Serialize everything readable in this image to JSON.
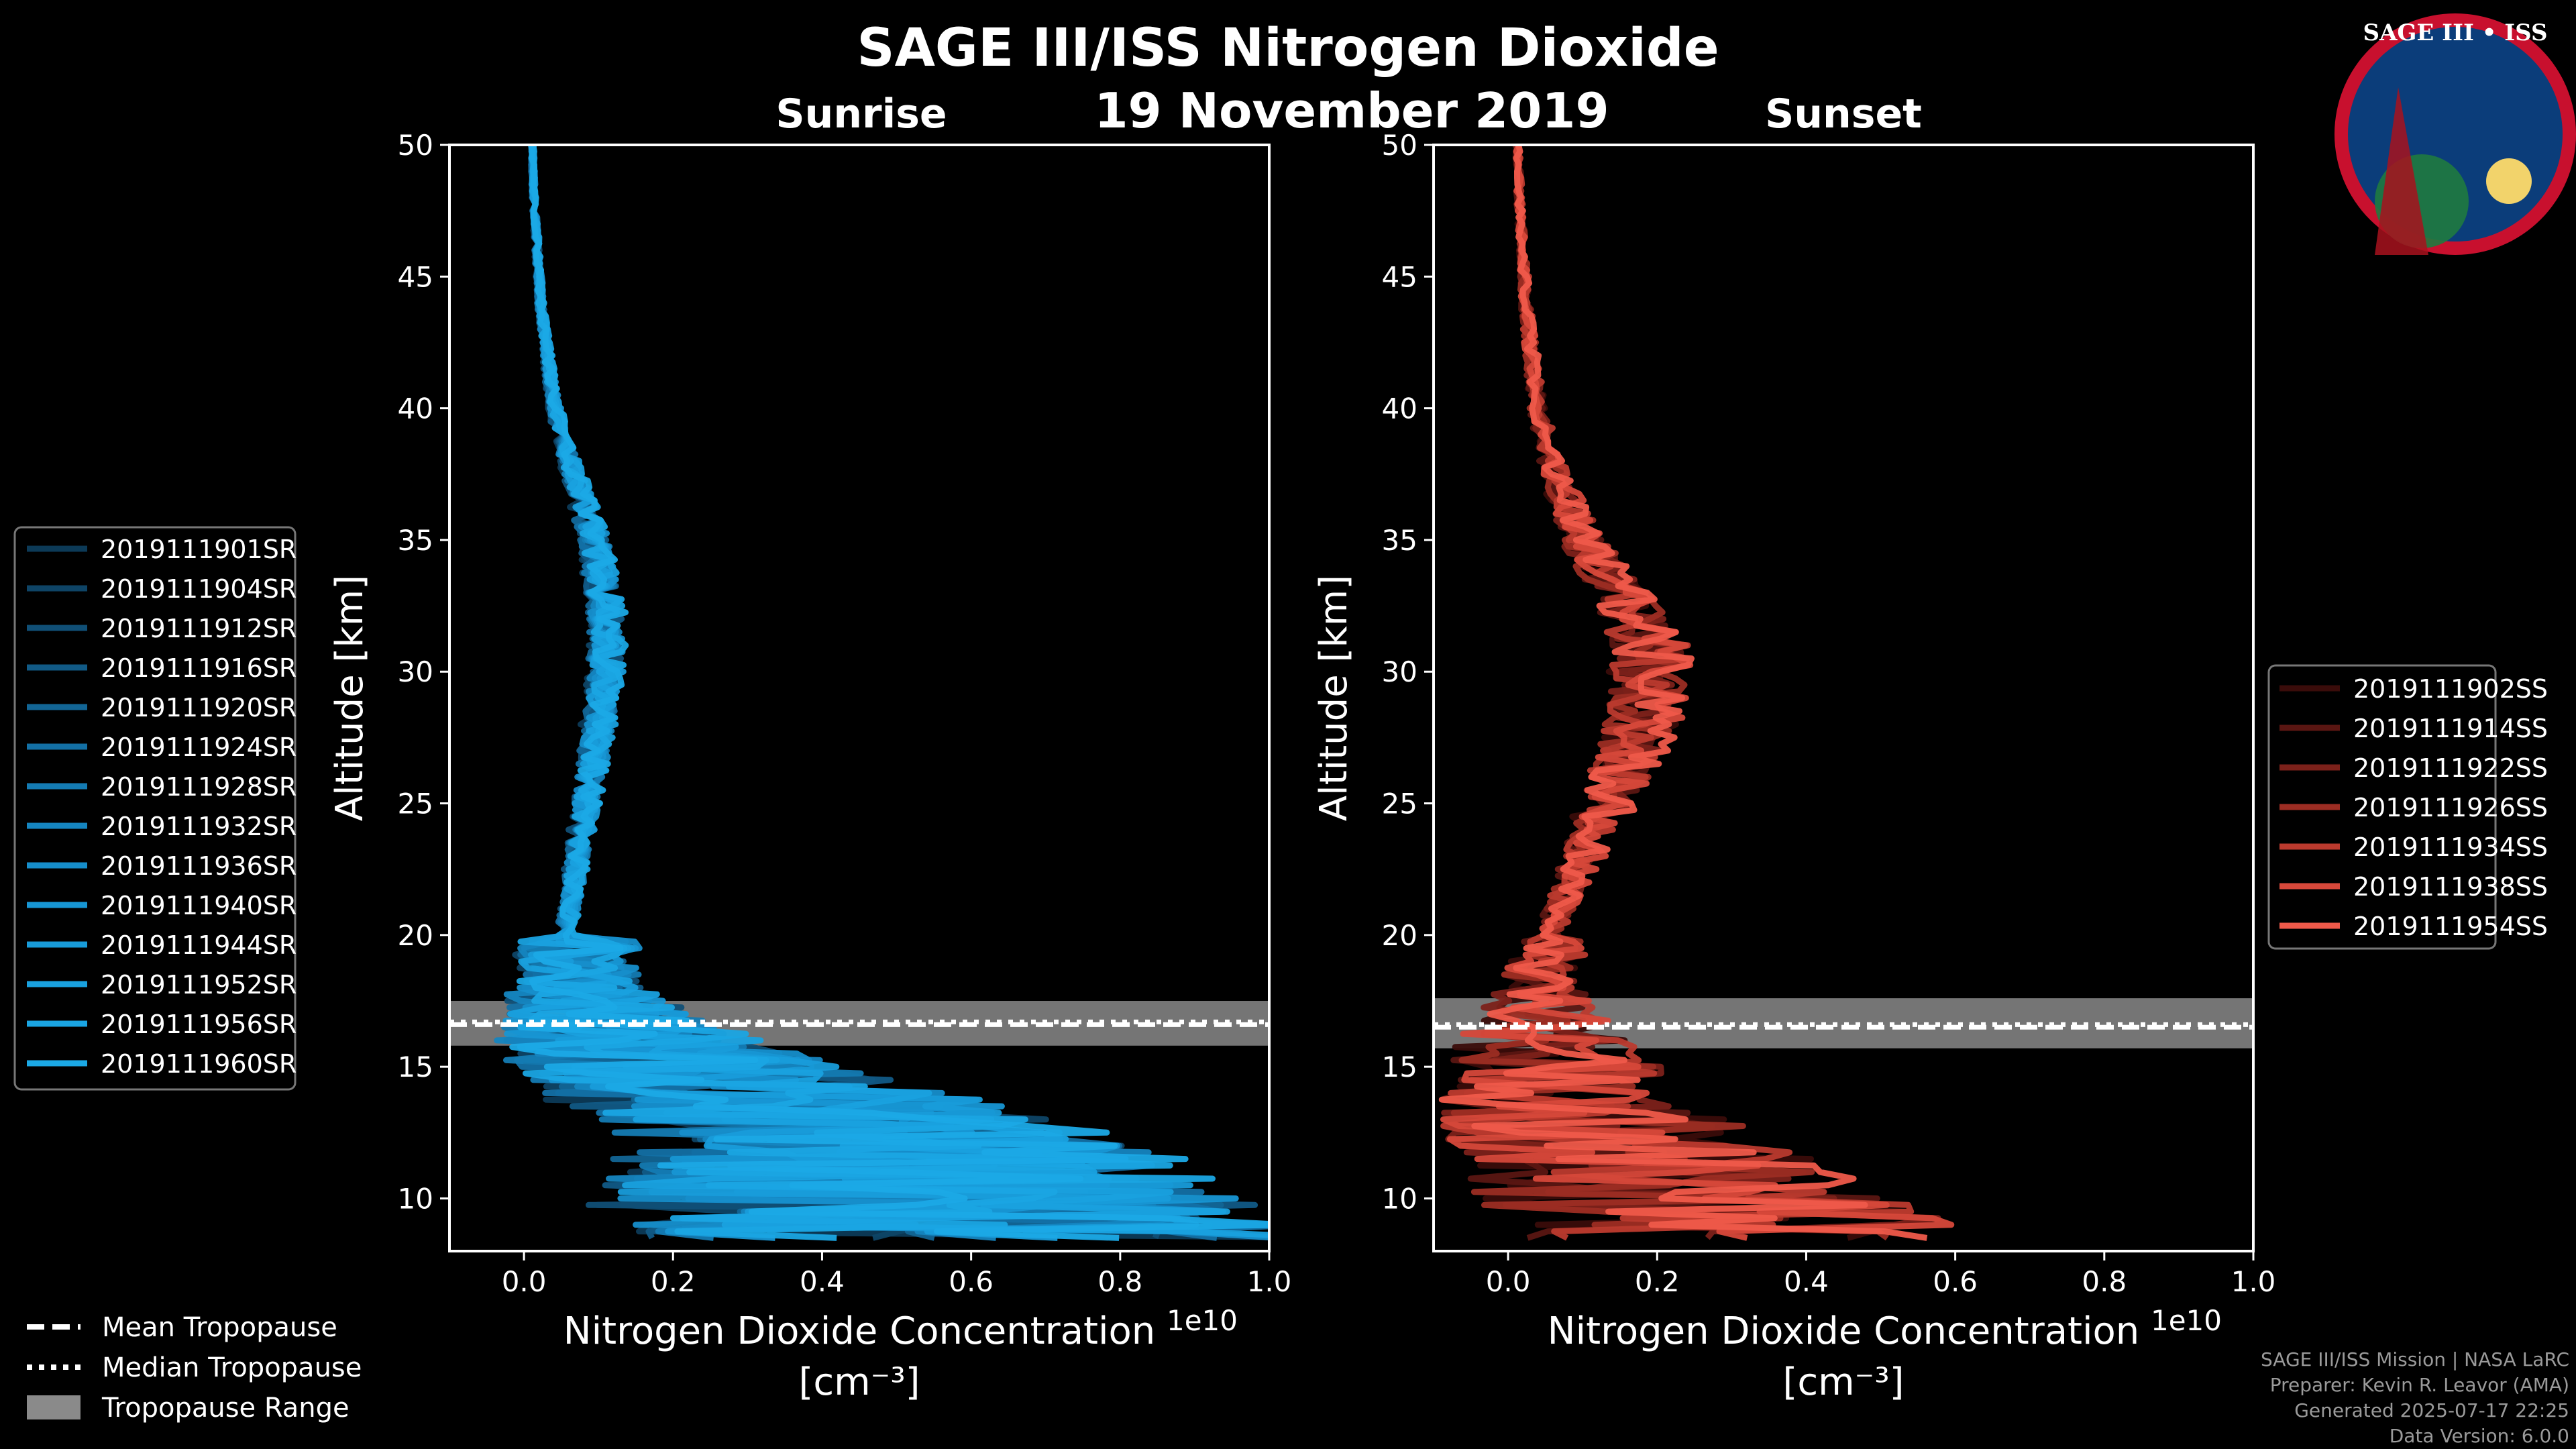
{
  "title": "SAGE III/ISS Nitrogen Dioxide",
  "date": "19 November 2019",
  "logo": {
    "text": "SAGE III • ISS",
    "icon": "mission-patch-icon",
    "colors": {
      "ring": "#c8102e",
      "inner": "#0b3d7a"
    }
  },
  "colors": {
    "background": "#000000",
    "sunrise": "#1e90d6",
    "sunset": "#ef5a4a",
    "tropopause_band": "#8a8a8a",
    "axes": "#ffffff"
  },
  "chart_data": [
    {
      "type": "line",
      "title": "Sunrise",
      "xlabel": "Nitrogen Dioxide Concentration",
      "xlabel_unit": "[cm⁻³]",
      "ylabel": "Altitude [km]",
      "x_scale_label": "1e10",
      "xlim": [
        -0.1,
        1.0
      ],
      "ylim": [
        8,
        50
      ],
      "xticks": [
        "0.0",
        "0.2",
        "0.4",
        "0.6",
        "0.8",
        "1.0"
      ],
      "yticks": [
        "10",
        "15",
        "20",
        "25",
        "30",
        "35",
        "40",
        "45",
        "50"
      ],
      "legend_position": "left",
      "profile_shape": {
        "alt": [
          8.5,
          9,
          10,
          11,
          12,
          13,
          14,
          15,
          16,
          17,
          18,
          19,
          20,
          21,
          22,
          23,
          24,
          25,
          26,
          27,
          28,
          29,
          30,
          31,
          32,
          33,
          34,
          35,
          36,
          37,
          38,
          39,
          40,
          41,
          42,
          43,
          44,
          45,
          46,
          47,
          48,
          49,
          50
        ],
        "no2": [
          0.5,
          0.45,
          0.4,
          0.38,
          0.35,
          0.3,
          0.22,
          0.15,
          0.09,
          0.06,
          0.05,
          0.05,
          0.05,
          0.055,
          0.06,
          0.065,
          0.07,
          0.075,
          0.08,
          0.085,
          0.09,
          0.095,
          0.1,
          0.1,
          0.1,
          0.095,
          0.09,
          0.085,
          0.075,
          0.065,
          0.055,
          0.045,
          0.038,
          0.032,
          0.028,
          0.024,
          0.02,
          0.018,
          0.016,
          0.014,
          0.012,
          0.011,
          0.01
        ]
      },
      "tropopause": {
        "mean": 16.6,
        "median": 16.7,
        "min": 15.8,
        "max": 17.5
      },
      "series": [
        {
          "name": "2019111901SR",
          "color": "#0c3a57"
        },
        {
          "name": "2019111904SR",
          "color": "#0e4466"
        },
        {
          "name": "2019111912SR",
          "color": "#104f76"
        },
        {
          "name": "2019111916SR",
          "color": "#115a86"
        },
        {
          "name": "2019111920SR",
          "color": "#126595"
        },
        {
          "name": "2019111924SR",
          "color": "#1370a5"
        },
        {
          "name": "2019111928SR",
          "color": "#147bb3"
        },
        {
          "name": "2019111932SR",
          "color": "#1585c0"
        },
        {
          "name": "2019111936SR",
          "color": "#168ecb"
        },
        {
          "name": "2019111940SR",
          "color": "#1796d4"
        },
        {
          "name": "2019111944SR",
          "color": "#189cda"
        },
        {
          "name": "2019111952SR",
          "color": "#19a1df"
        },
        {
          "name": "2019111956SR",
          "color": "#1aa5e3"
        },
        {
          "name": "2019111960SR",
          "color": "#1ba9e6"
        }
      ]
    },
    {
      "type": "line",
      "title": "Sunset",
      "xlabel": "Nitrogen Dioxide Concentration",
      "xlabel_unit": "[cm⁻³]",
      "ylabel": "Altitude [km]",
      "x_scale_label": "1e10",
      "xlim": [
        -0.1,
        1.0
      ],
      "ylim": [
        8,
        50
      ],
      "xticks": [
        "0.0",
        "0.2",
        "0.4",
        "0.6",
        "0.8",
        "1.0"
      ],
      "yticks": [
        "10",
        "15",
        "20",
        "25",
        "30",
        "35",
        "40",
        "45",
        "50"
      ],
      "legend_position": "right",
      "profile_shape": {
        "alt": [
          8.5,
          9,
          10,
          11,
          12,
          13,
          14,
          15,
          16,
          17,
          18,
          19,
          20,
          21,
          22,
          23,
          24,
          25,
          26,
          27,
          28,
          29,
          30,
          31,
          32,
          33,
          34,
          35,
          36,
          37,
          38,
          39,
          40,
          41,
          42,
          43,
          44,
          45,
          46,
          47,
          48,
          49,
          50
        ],
        "no2": [
          0.35,
          0.3,
          0.25,
          0.18,
          0.12,
          0.08,
          0.05,
          0.04,
          0.03,
          0.03,
          0.035,
          0.05,
          0.07,
          0.09,
          0.11,
          0.13,
          0.15,
          0.17,
          0.19,
          0.21,
          0.23,
          0.24,
          0.245,
          0.24,
          0.22,
          0.19,
          0.16,
          0.13,
          0.11,
          0.09,
          0.075,
          0.062,
          0.052,
          0.045,
          0.04,
          0.035,
          0.031,
          0.028,
          0.025,
          0.022,
          0.02,
          0.018,
          0.016
        ]
      },
      "tropopause": {
        "mean": 16.5,
        "median": 16.6,
        "min": 15.7,
        "max": 17.6
      },
      "series": [
        {
          "name": "2019111902SS",
          "color": "#3a0c0a"
        },
        {
          "name": "2019111914SS",
          "color": "#5a1612"
        },
        {
          "name": "2019111922SS",
          "color": "#7c211a"
        },
        {
          "name": "2019111926SS",
          "color": "#9c2d23"
        },
        {
          "name": "2019111934SS",
          "color": "#bb3a2e"
        },
        {
          "name": "2019111938SS",
          "color": "#d6483a"
        },
        {
          "name": "2019111954SS",
          "color": "#ef5a4a"
        }
      ]
    }
  ],
  "tropopause_legend": {
    "mean": "Mean Tropopause",
    "median": "Median Tropopause",
    "range": "Tropopause Range"
  },
  "footer": {
    "line1": "SAGE III/ISS Mission | NASA LaRC",
    "line2": "Preparer: Kevin R. Leavor (AMA)",
    "line3": "Generated 2025-07-17 22:25",
    "line4": "Data Version: 6.0.0"
  }
}
